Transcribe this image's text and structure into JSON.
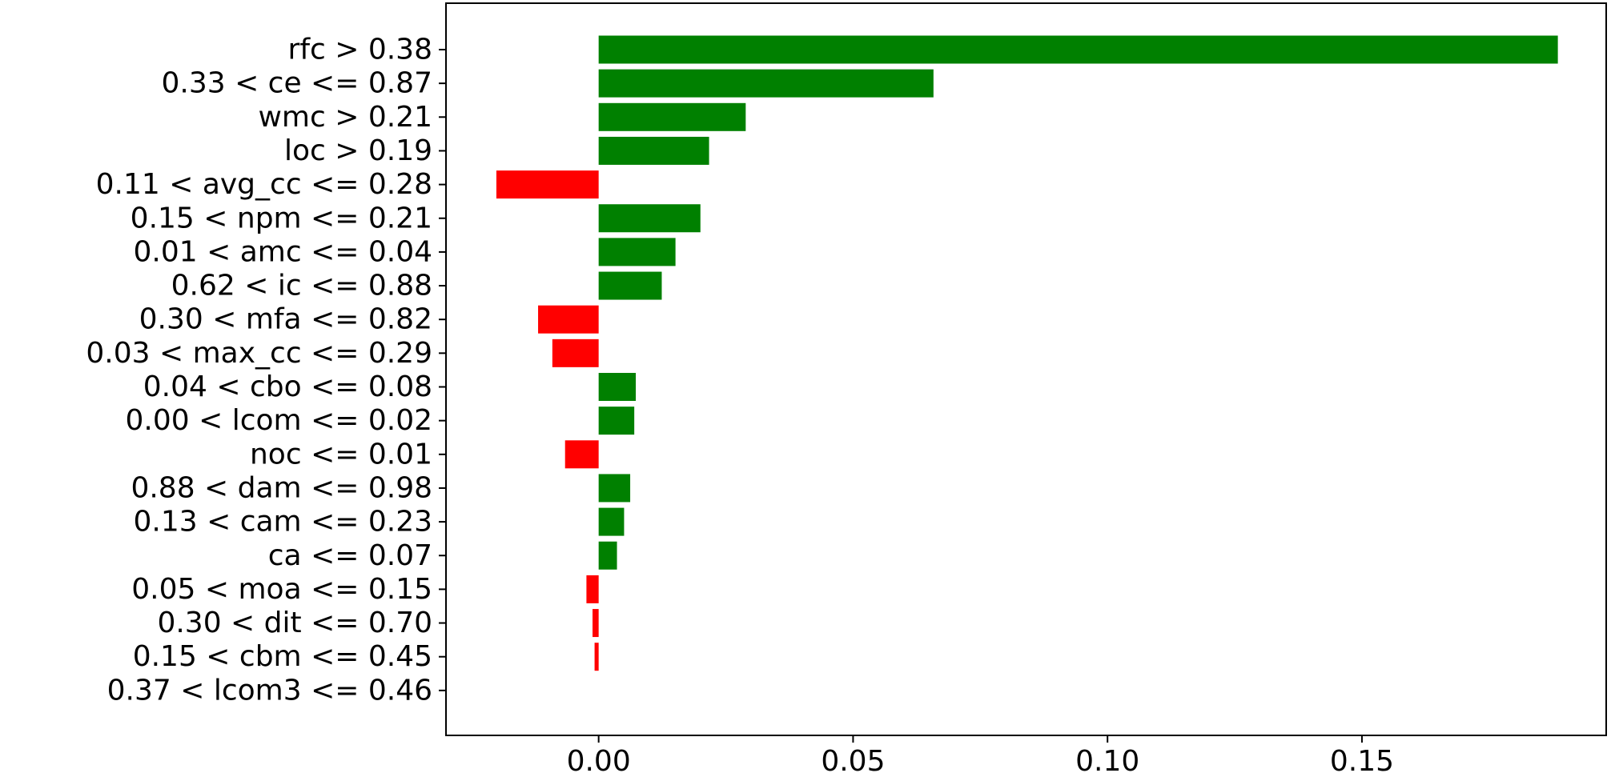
{
  "chart_data": {
    "type": "bar",
    "orientation": "horizontal",
    "title": "",
    "xlabel": "",
    "ylabel": "",
    "xlim": [
      -0.03,
      0.198
    ],
    "xticks": [
      0.0,
      0.05,
      0.1,
      0.15
    ],
    "xtick_labels": [
      "0.00",
      "0.05",
      "0.10",
      "0.15"
    ],
    "grid": false,
    "legend": "none",
    "colors": {
      "positive": "#008000",
      "negative": "#ff0000",
      "axis": "#000000"
    },
    "categories": [
      "rfc > 0.38",
      "0.33 < ce <= 0.87",
      "wmc > 0.21",
      "loc > 0.19",
      "0.11 < avg_cc <= 0.28",
      "0.15 < npm <= 0.21",
      "0.01 < amc <= 0.04",
      "0.62 < ic <= 0.88",
      "0.30 < mfa <= 0.82",
      "0.03 < max_cc <= 0.29",
      "0.04 < cbo <= 0.08",
      "0.00 < lcom <= 0.02",
      "noc <= 0.01",
      "0.88 < dam <= 0.98",
      "0.13 < cam <= 0.23",
      "ca <= 0.07",
      "0.05 < moa <= 0.15",
      "0.30 < dit <= 0.70",
      "0.15 < cbm <= 0.45",
      "0.37 < lcom3 <= 0.46"
    ],
    "values": [
      0.1885,
      0.0658,
      0.0289,
      0.0217,
      -0.0201,
      0.02,
      0.0151,
      0.0124,
      -0.0119,
      -0.0091,
      0.0073,
      0.007,
      -0.0066,
      0.0062,
      0.005,
      0.0036,
      -0.0024,
      -0.0012,
      -0.0008,
      0.0
    ]
  }
}
